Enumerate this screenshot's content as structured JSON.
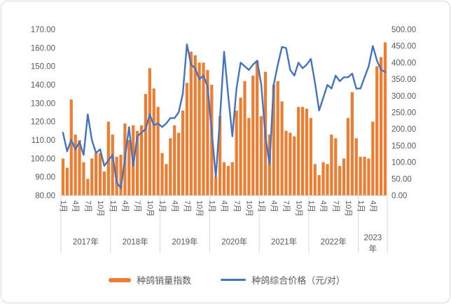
{
  "legend": {
    "items": [
      {
        "label": "种鸽销量指数",
        "type": "bar",
        "color": "#ED7D31"
      },
      {
        "label": "种鸽综合价格（元/对）",
        "type": "line",
        "color": "#4472C4"
      }
    ]
  },
  "chart_data": {
    "type": "bar+line combo",
    "title": "",
    "left_axis": {
      "min": 80,
      "max": 170,
      "step": 10,
      "tick_labels": [
        "170.00",
        "160.00",
        "150.00",
        "140.00",
        "130.00",
        "120.00",
        "110.00",
        "100.00",
        "90.00",
        "80.00"
      ]
    },
    "right_axis": {
      "min": 0,
      "max": 500,
      "step": 50,
      "tick_labels": [
        "500.00",
        "450.00",
        "400.00",
        "350.00",
        "300.00",
        "250.00",
        "200.00",
        "150.00",
        "100.00",
        "50.00",
        "0.00"
      ]
    },
    "years": [
      {
        "label": "2017年",
        "months": 12,
        "wrap": false,
        "ticks": [
          {
            "m": 0,
            "label": "1月"
          },
          {
            "m": 3,
            "label": "4月"
          },
          {
            "m": 6,
            "label": "7月"
          },
          {
            "m": 9,
            "label": "10月"
          }
        ]
      },
      {
        "label": "2018年",
        "months": 12,
        "wrap": false,
        "ticks": [
          {
            "m": 0,
            "label": "1月"
          },
          {
            "m": 3,
            "label": "4月"
          },
          {
            "m": 6,
            "label": "7月"
          },
          {
            "m": 9,
            "label": "10月"
          }
        ]
      },
      {
        "label": "2019年",
        "months": 12,
        "wrap": false,
        "ticks": [
          {
            "m": 0,
            "label": "1月"
          },
          {
            "m": 3,
            "label": "4月"
          },
          {
            "m": 6,
            "label": "7月"
          },
          {
            "m": 9,
            "label": "10月"
          }
        ]
      },
      {
        "label": "2020年",
        "months": 12,
        "wrap": false,
        "ticks": [
          {
            "m": 0,
            "label": "1月"
          },
          {
            "m": 3,
            "label": "4月"
          },
          {
            "m": 6,
            "label": "7月"
          },
          {
            "m": 9,
            "label": "10月"
          }
        ]
      },
      {
        "label": "2021年",
        "months": 12,
        "wrap": false,
        "ticks": [
          {
            "m": 0,
            "label": "1月"
          },
          {
            "m": 3,
            "label": "4月"
          },
          {
            "m": 6,
            "label": "7月"
          },
          {
            "m": 9,
            "label": "10月"
          }
        ]
      },
      {
        "label": "2022年",
        "months": 12,
        "wrap": false,
        "ticks": [
          {
            "m": 0,
            "label": "1月"
          },
          {
            "m": 3,
            "label": "4月"
          },
          {
            "m": 6,
            "label": "7月"
          },
          {
            "m": 9,
            "label": "10月"
          }
        ]
      },
      {
        "label": "2023年",
        "months": 7,
        "wrap": true,
        "ticks": [
          {
            "m": 0,
            "label": "1月"
          },
          {
            "m": 3,
            "label": "4月"
          }
        ]
      }
    ],
    "series": [
      {
        "name": "种鸽销量指数",
        "type": "bar",
        "axis": "left",
        "color": "#ED7D31",
        "values": [
          100,
          95,
          132,
          113,
          110,
          98,
          89,
          100,
          103,
          103,
          93,
          120,
          113,
          101,
          102,
          119,
          110,
          118,
          115,
          118,
          135,
          149,
          138,
          128,
          103,
          97,
          111,
          118,
          114,
          126,
          141,
          158,
          156,
          152,
          152,
          148,
          140,
          90,
          123,
          98,
          96,
          98,
          126,
          133,
          142,
          122,
          145,
          153,
          123,
          147,
          113,
          140,
          142,
          131,
          115,
          114,
          112,
          128,
          128,
          127,
          122,
          97,
          91,
          98,
          97,
          113,
          111,
          96,
          100,
          122,
          136,
          111,
          101,
          101,
          100,
          120,
          150,
          155,
          163
        ]
      },
      {
        "name": "种鸽综合价格（元/对）",
        "type": "line",
        "axis": "right",
        "color": "#4472C4",
        "values": [
          189,
          133,
          167,
          139,
          161,
          122,
          244,
          167,
          128,
          139,
          89,
          106,
          122,
          39,
          22,
          111,
          206,
          89,
          178,
          189,
          200,
          244,
          211,
          217,
          206,
          217,
          233,
          233,
          250,
          306,
          455,
          394,
          383,
          350,
          361,
          328,
          194,
          56,
          233,
          433,
          300,
          178,
          322,
          400,
          389,
          378,
          394,
          406,
          333,
          178,
          94,
          333,
          394,
          447,
          444,
          378,
          361,
          400,
          383,
          394,
          411,
          339,
          256,
          294,
          333,
          322,
          361,
          344,
          356,
          356,
          367,
          322,
          322,
          356,
          389,
          450,
          406,
          378,
          372
        ]
      }
    ],
    "layout": {
      "grid": "none",
      "axis_text_color": "#595959",
      "axis_line_color": "#bfbfbf",
      "separator_color": "#d9d9d9",
      "legend_position": "bottom-center",
      "month_labels_rotated_deg": 90
    }
  }
}
